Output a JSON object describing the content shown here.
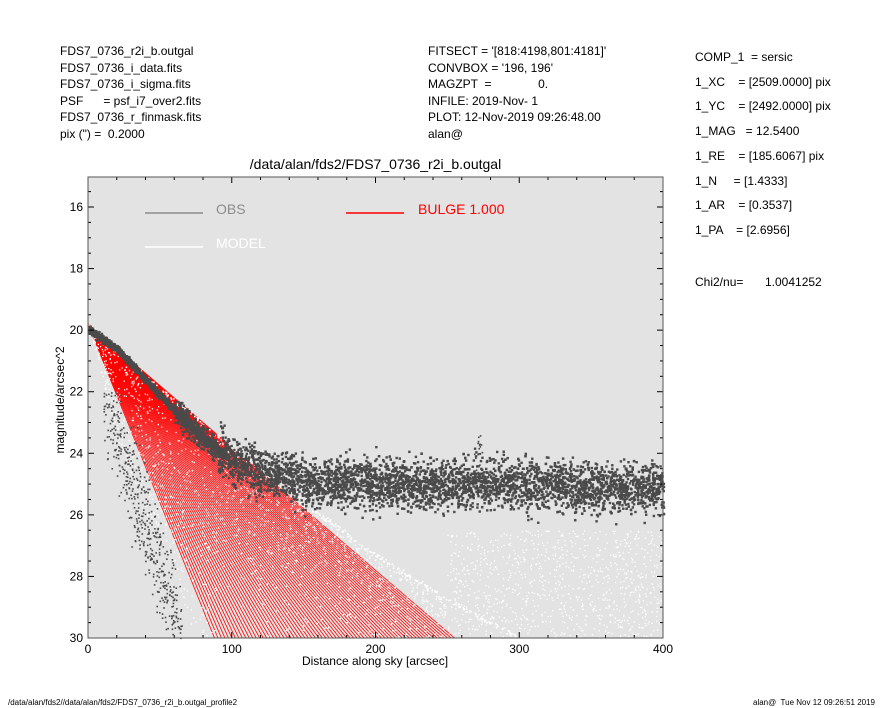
{
  "header_left": [
    "FDS7_0736_r2i_b.outgal",
    "FDS7_0736_i_data.fits",
    "FDS7_0736_i_sigma.fits",
    "PSF      = psf_i7_over2.fits",
    "FDS7_0736_r_finmask.fits",
    "pix (\") =  0.2000"
  ],
  "header_middle": [
    "FITSECT = '[818:4198,801:4181]'",
    "CONVBOX = '196, 196'",
    "MAGZPT  =              0.",
    "INFILE: 2019-Nov- 1",
    "PLOT: 12-Nov-2019 09:26:48.00",
    "alan@"
  ],
  "fit_params": [
    "COMP_1  = sersic",
    "1_XC    = [2509.0000] pix",
    "1_YC    = [2492.0000] pix",
    "1_MAG   = 12.5400",
    "1_RE    = [185.6067] pix",
    "1_N     = [1.4333]",
    "1_AR    = [0.3537]",
    "1_PA    = [2.6956]"
  ],
  "chi2_label": "Chi2/nu=",
  "chi2_value": "1.0041252",
  "footer_left": "/data/alan/fds2//data/alan/fds2/FDS7_0736_r2i_b.outgal_profile2",
  "footer_right": "alan@  Tue Nov 12 09:26:51 2019",
  "colors": {
    "panel_bg": "#e3e3e3",
    "obs": "#4a4a4a",
    "obs_legend": "#8c8c8c",
    "model": "#ffffff",
    "bulge": "#ff0000"
  },
  "chart_data": {
    "type": "scatter",
    "title": "/data/alan/fds2/FDS7_0736_r2i_b.outgal",
    "xlabel": "Distance along sky [arcsec]",
    "ylabel": "magnitude/arcsec^2",
    "xlim": [
      0,
      400
    ],
    "ylim": [
      30.0,
      15.0
    ],
    "y_inverted": true,
    "xticks": [
      "0",
      "100",
      "200",
      "300",
      "400"
    ],
    "yticks": [
      "16",
      "18",
      "20",
      "22",
      "24",
      "26",
      "28",
      "30"
    ],
    "legend": {
      "obs": "OBS",
      "model": "MODEL",
      "bulge": "BULGE  1.000"
    },
    "series": [
      {
        "name": "OBS",
        "style": "points",
        "description_points": [
          [
            2,
            20.0
          ],
          [
            20,
            20.6
          ],
          [
            40,
            21.6
          ],
          [
            60,
            22.6
          ],
          [
            80,
            23.5
          ],
          [
            100,
            24.2
          ],
          [
            120,
            24.6
          ],
          [
            150,
            24.9
          ],
          [
            200,
            25.0
          ],
          [
            250,
            25.0
          ],
          [
            300,
            25.0
          ],
          [
            350,
            25.1
          ],
          [
            400,
            25.1
          ]
        ],
        "band_low": [
          [
            90,
            24.0
          ],
          [
            400,
            24.7
          ]
        ],
        "band_high": [
          [
            90,
            26.0
          ],
          [
            400,
            26.5
          ]
        ]
      },
      {
        "name": "MODEL",
        "style": "points",
        "envelope_top": [
          [
            0,
            19.8
          ],
          [
            50,
            21.9
          ],
          [
            100,
            23.8
          ],
          [
            150,
            25.6
          ],
          [
            200,
            27.3
          ],
          [
            260,
            29.0
          ],
          [
            300,
            30.0
          ]
        ],
        "envelope_bottom": [
          [
            0,
            19.8
          ],
          [
            20,
            23.5
          ],
          [
            40,
            26.0
          ],
          [
            60,
            28.0
          ],
          [
            75,
            30.0
          ]
        ]
      },
      {
        "name": "BULGE  1.000",
        "style": "lines",
        "min_slope_end": [
          88,
          30.0
        ],
        "max_slope_end": [
          255,
          30.0
        ],
        "start": [
          0,
          19.8
        ]
      }
    ]
  }
}
